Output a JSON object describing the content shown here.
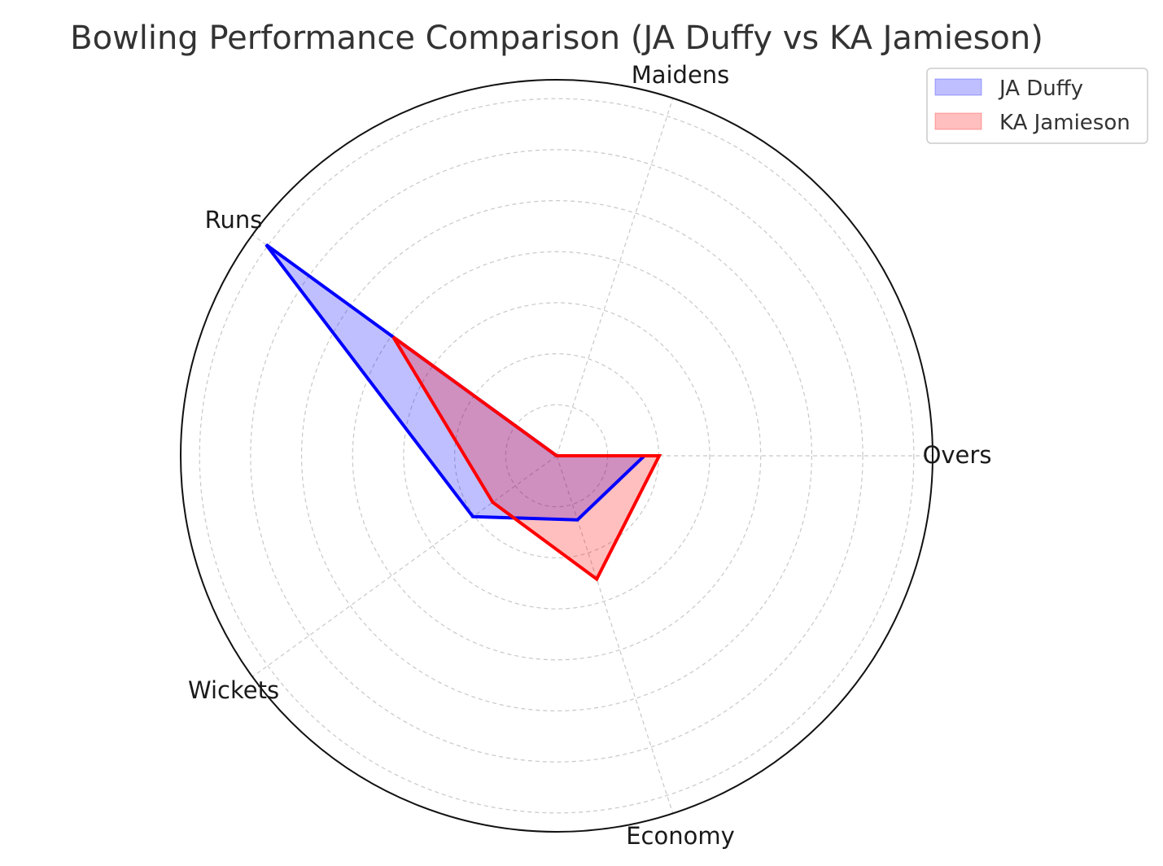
{
  "chart_data": {
    "type": "radar",
    "title": "Bowling Performance Comparison (JA Duffy vs KA Jamieson)",
    "categories": [
      "Overs",
      "Maidens",
      "Runs",
      "Wickets",
      "Economy"
    ],
    "rlim": [
      0,
      73.7
    ],
    "rgrid": [
      10,
      20,
      30,
      40,
      50,
      60,
      70
    ],
    "grid": true,
    "legend_position": "top-right",
    "series": [
      {
        "name": "JA Duffy",
        "values": [
          17.2,
          0,
          70.4,
          20.3,
          13.2
        ],
        "color": "#0000ff",
        "fill": "#0000ff"
      },
      {
        "name": "KA Jamieson",
        "values": [
          20.1,
          0,
          39.6,
          15.5,
          25.4
        ],
        "color": "#ff0000",
        "fill": "#ff0000"
      }
    ]
  }
}
